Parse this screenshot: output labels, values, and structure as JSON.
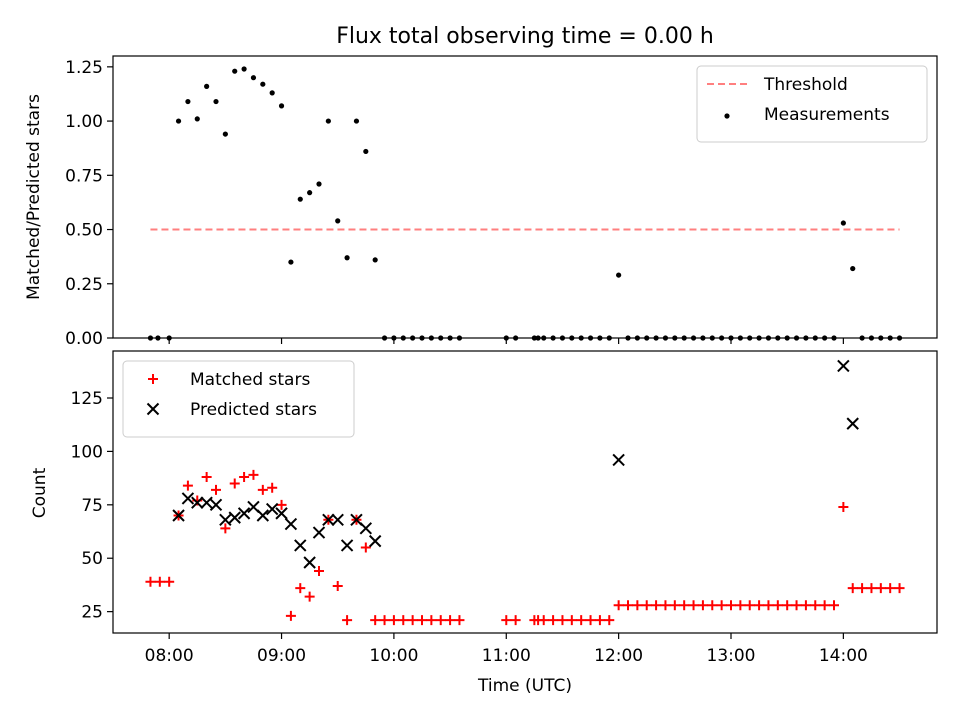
{
  "chart_data": [
    {
      "type": "scatter",
      "title": "Flux total observing time = 0.00 h",
      "xlabel": "",
      "ylabel": "Matched/Predicted stars",
      "xlim": [
        "07:30",
        "14:50"
      ],
      "ylim": [
        0,
        1.3
      ],
      "y_ticks": [
        0.0,
        0.25,
        0.5,
        0.75,
        1.0,
        1.25
      ],
      "y_tick_labels": [
        "0.00",
        "0.25",
        "0.50",
        "0.75",
        "1.00",
        "1.25"
      ],
      "x_ticks": [
        "08:00",
        "09:00",
        "10:00",
        "11:00",
        "12:00",
        "13:00",
        "14:00"
      ],
      "show_x_tick_labels": false,
      "grid": false,
      "legend": "top-right",
      "threshold": {
        "name": "Threshold",
        "value": 0.5,
        "x_start": "07:50",
        "x_end": "14:30",
        "color": "#ff7f7f",
        "style": "dashed"
      },
      "series": [
        {
          "name": "Measurements",
          "marker": "dot",
          "color": "#000000",
          "points": [
            [
              "07:50",
              0.0
            ],
            [
              "07:54",
              0.0
            ],
            [
              "08:00",
              0.0
            ],
            [
              "08:05",
              1.0
            ],
            [
              "08:10",
              1.09
            ],
            [
              "08:15",
              1.01
            ],
            [
              "08:20",
              1.16
            ],
            [
              "08:25",
              1.09
            ],
            [
              "08:30",
              0.94
            ],
            [
              "08:35",
              1.23
            ],
            [
              "08:40",
              1.24
            ],
            [
              "08:45",
              1.2
            ],
            [
              "08:50",
              1.17
            ],
            [
              "08:55",
              1.13
            ],
            [
              "09:00",
              1.07
            ],
            [
              "09:05",
              0.35
            ],
            [
              "09:10",
              0.64
            ],
            [
              "09:15",
              0.67
            ],
            [
              "09:20",
              0.71
            ],
            [
              "09:25",
              1.0
            ],
            [
              "09:30",
              0.54
            ],
            [
              "09:35",
              0.37
            ],
            [
              "09:40",
              1.0
            ],
            [
              "09:45",
              0.86
            ],
            [
              "09:50",
              0.36
            ],
            [
              "09:55",
              0.0
            ],
            [
              "10:00",
              0.0
            ],
            [
              "10:05",
              0.0
            ],
            [
              "10:10",
              0.0
            ],
            [
              "10:15",
              0.0
            ],
            [
              "10:20",
              0.0
            ],
            [
              "10:25",
              0.0
            ],
            [
              "10:30",
              0.0
            ],
            [
              "10:35",
              0.0
            ],
            [
              "11:00",
              0.0
            ],
            [
              "11:05",
              0.0
            ],
            [
              "11:15",
              0.0
            ],
            [
              "11:17",
              0.0
            ],
            [
              "11:20",
              0.0
            ],
            [
              "11:25",
              0.0
            ],
            [
              "11:30",
              0.0
            ],
            [
              "11:35",
              0.0
            ],
            [
              "11:40",
              0.0
            ],
            [
              "11:45",
              0.0
            ],
            [
              "11:50",
              0.0
            ],
            [
              "11:55",
              0.0
            ],
            [
              "12:00",
              0.29
            ],
            [
              "12:05",
              0.0
            ],
            [
              "12:10",
              0.0
            ],
            [
              "12:15",
              0.0
            ],
            [
              "12:20",
              0.0
            ],
            [
              "12:25",
              0.0
            ],
            [
              "12:30",
              0.0
            ],
            [
              "12:35",
              0.0
            ],
            [
              "12:40",
              0.0
            ],
            [
              "12:45",
              0.0
            ],
            [
              "12:50",
              0.0
            ],
            [
              "12:55",
              0.0
            ],
            [
              "13:00",
              0.0
            ],
            [
              "13:05",
              0.0
            ],
            [
              "13:10",
              0.0
            ],
            [
              "13:15",
              0.0
            ],
            [
              "13:20",
              0.0
            ],
            [
              "13:25",
              0.0
            ],
            [
              "13:30",
              0.0
            ],
            [
              "13:35",
              0.0
            ],
            [
              "13:40",
              0.0
            ],
            [
              "13:45",
              0.0
            ],
            [
              "13:50",
              0.0
            ],
            [
              "13:55",
              0.0
            ],
            [
              "14:00",
              0.53
            ],
            [
              "14:05",
              0.32
            ],
            [
              "14:10",
              0.0
            ],
            [
              "14:15",
              0.0
            ],
            [
              "14:20",
              0.0
            ],
            [
              "14:25",
              0.0
            ],
            [
              "14:30",
              0.0
            ]
          ]
        }
      ]
    },
    {
      "type": "scatter",
      "title": "",
      "xlabel": "Time (UTC)",
      "ylabel": "Count",
      "xlim": [
        "07:30",
        "14:50"
      ],
      "ylim": [
        15,
        147
      ],
      "y_ticks": [
        25,
        50,
        75,
        100,
        125
      ],
      "y_tick_labels": [
        "25",
        "50",
        "75",
        "100",
        "125"
      ],
      "x_ticks": [
        "08:00",
        "09:00",
        "10:00",
        "11:00",
        "12:00",
        "13:00",
        "14:00"
      ],
      "x_tick_labels": [
        "08:00",
        "09:00",
        "10:00",
        "11:00",
        "12:00",
        "13:00",
        "14:00"
      ],
      "grid": false,
      "legend": "top-left",
      "series": [
        {
          "name": "Matched stars",
          "marker": "plus",
          "color": "#ff0000",
          "points": [
            [
              "07:50",
              39
            ],
            [
              "07:55",
              39
            ],
            [
              "08:00",
              39
            ],
            [
              "08:05",
              70
            ],
            [
              "08:10",
              84
            ],
            [
              "08:15",
              77
            ],
            [
              "08:20",
              88
            ],
            [
              "08:25",
              82
            ],
            [
              "08:30",
              64
            ],
            [
              "08:35",
              85
            ],
            [
              "08:40",
              88
            ],
            [
              "08:45",
              89
            ],
            [
              "08:50",
              82
            ],
            [
              "08:55",
              83
            ],
            [
              "09:00",
              75
            ],
            [
              "09:05",
              23
            ],
            [
              "09:10",
              36
            ],
            [
              "09:15",
              32
            ],
            [
              "09:20",
              44
            ],
            [
              "09:25",
              68
            ],
            [
              "09:30",
              37
            ],
            [
              "09:35",
              21
            ],
            [
              "09:40",
              68
            ],
            [
              "09:45",
              55
            ],
            [
              "09:50",
              21
            ],
            [
              "09:55",
              21
            ],
            [
              "10:00",
              21
            ],
            [
              "10:05",
              21
            ],
            [
              "10:10",
              21
            ],
            [
              "10:15",
              21
            ],
            [
              "10:20",
              21
            ],
            [
              "10:25",
              21
            ],
            [
              "10:30",
              21
            ],
            [
              "10:35",
              21
            ],
            [
              "11:00",
              21
            ],
            [
              "11:05",
              21
            ],
            [
              "11:15",
              21
            ],
            [
              "11:17",
              21
            ],
            [
              "11:20",
              21
            ],
            [
              "11:25",
              21
            ],
            [
              "11:30",
              21
            ],
            [
              "11:35",
              21
            ],
            [
              "11:40",
              21
            ],
            [
              "11:45",
              21
            ],
            [
              "11:50",
              21
            ],
            [
              "11:55",
              21
            ],
            [
              "12:00",
              28
            ],
            [
              "12:05",
              28
            ],
            [
              "12:10",
              28
            ],
            [
              "12:15",
              28
            ],
            [
              "12:20",
              28
            ],
            [
              "12:25",
              28
            ],
            [
              "12:30",
              28
            ],
            [
              "12:35",
              28
            ],
            [
              "12:40",
              28
            ],
            [
              "12:45",
              28
            ],
            [
              "12:50",
              28
            ],
            [
              "12:55",
              28
            ],
            [
              "13:00",
              28
            ],
            [
              "13:05",
              28
            ],
            [
              "13:10",
              28
            ],
            [
              "13:15",
              28
            ],
            [
              "13:20",
              28
            ],
            [
              "13:25",
              28
            ],
            [
              "13:30",
              28
            ],
            [
              "13:35",
              28
            ],
            [
              "13:40",
              28
            ],
            [
              "13:45",
              28
            ],
            [
              "13:50",
              28
            ],
            [
              "13:55",
              28
            ],
            [
              "14:00",
              74
            ],
            [
              "14:05",
              36
            ],
            [
              "14:10",
              36
            ],
            [
              "14:15",
              36
            ],
            [
              "14:20",
              36
            ],
            [
              "14:25",
              36
            ],
            [
              "14:30",
              36
            ]
          ]
        },
        {
          "name": "Predicted stars",
          "marker": "x",
          "color": "#000000",
          "points": [
            [
              "08:05",
              70
            ],
            [
              "08:10",
              78
            ],
            [
              "08:15",
              76
            ],
            [
              "08:20",
              76
            ],
            [
              "08:25",
              75
            ],
            [
              "08:30",
              68
            ],
            [
              "08:35",
              69
            ],
            [
              "08:40",
              71
            ],
            [
              "08:45",
              74
            ],
            [
              "08:50",
              70
            ],
            [
              "08:55",
              73
            ],
            [
              "09:00",
              71
            ],
            [
              "09:05",
              66
            ],
            [
              "09:10",
              56
            ],
            [
              "09:15",
              48
            ],
            [
              "09:20",
              62
            ],
            [
              "09:25",
              68
            ],
            [
              "09:30",
              68
            ],
            [
              "09:35",
              56
            ],
            [
              "09:40",
              68
            ],
            [
              "09:45",
              64
            ],
            [
              "09:50",
              58
            ],
            [
              "12:00",
              96
            ],
            [
              "14:00",
              140
            ],
            [
              "14:05",
              113
            ]
          ]
        }
      ]
    }
  ]
}
